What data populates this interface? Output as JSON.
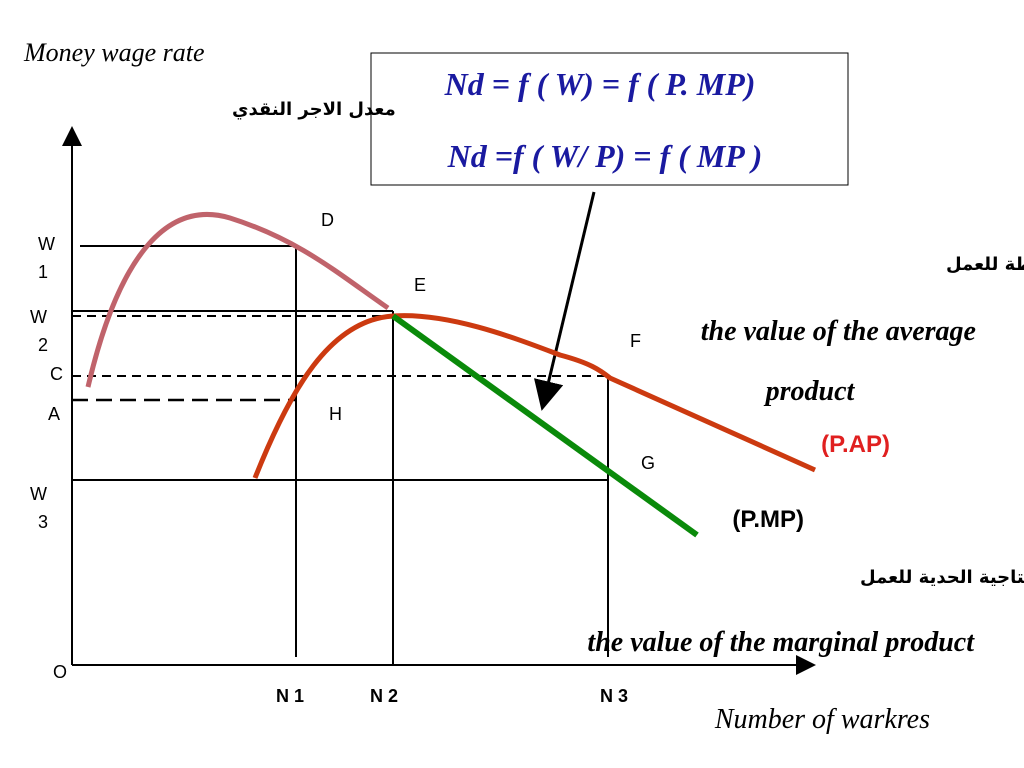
{
  "axes": {
    "y_title": "Money wage rate",
    "y_title_arabic": "معدل الاجر النقدي",
    "x_title": "Number of warkres",
    "origin": "O"
  },
  "formula": {
    "line1": "Nd = f ( W)  = f ( P. MP)",
    "line2": "Nd =f ( W/ P) = f ( MP )"
  },
  "y_labels": [
    [
      "W",
      "1"
    ],
    [
      "W",
      "2"
    ],
    [
      "C"
    ],
    [
      "A"
    ],
    [
      "W",
      "3"
    ]
  ],
  "x_labels": [
    "N 1",
    "N 2",
    "N 3"
  ],
  "points": {
    "D": "D",
    "E": "E",
    "F": "F",
    "G": "G",
    "H": "H"
  },
  "average_curve": {
    "arabic": "قيمة الانتاجية المتوسطة  للعمل",
    "line1": "the value of the average",
    "line2": "product",
    "tag": "(P.AP)"
  },
  "marginal_curve": {
    "arabic": "قيمة الانتاجية الحدية للعمل",
    "text": "the value of the marginal product",
    "tag": "(P.MP)"
  }
}
